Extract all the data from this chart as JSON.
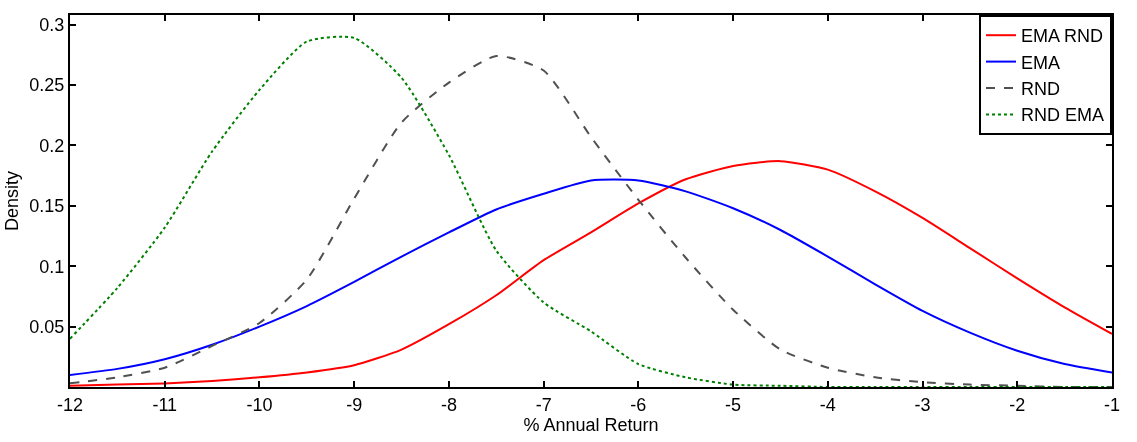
{
  "chart_data": {
    "type": "line",
    "xlabel": "% Annual Return",
    "ylabel": "Density",
    "x": [
      -12,
      -11.5,
      -11,
      -10.5,
      -10,
      -9.5,
      -9,
      -8.5,
      -8,
      -7.5,
      -7,
      -6.5,
      -6,
      -5.5,
      -5,
      -4.5,
      -4,
      -3.5,
      -3,
      -2.5,
      -2,
      -1.5,
      -1
    ],
    "series": [
      {
        "name": "EMA RND",
        "color": "#ff0000",
        "line_style": "solid",
        "values": [
          0.001,
          0.002,
          0.003,
          0.005,
          0.008,
          0.012,
          0.018,
          0.031,
          0.052,
          0.076,
          0.105,
          0.128,
          0.152,
          0.172,
          0.183,
          0.187,
          0.18,
          0.162,
          0.14,
          0.115,
          0.09,
          0.066,
          0.044
        ]
      },
      {
        "name": "EMA",
        "color": "#0000ff",
        "line_style": "solid",
        "values": [
          0.01,
          0.015,
          0.023,
          0.035,
          0.05,
          0.067,
          0.087,
          0.108,
          0.128,
          0.147,
          0.16,
          0.171,
          0.171,
          0.162,
          0.148,
          0.13,
          0.108,
          0.085,
          0.063,
          0.045,
          0.03,
          0.019,
          0.012
        ]
      },
      {
        "name": "RND",
        "color": "#505050",
        "line_style": "dashed",
        "values": [
          0.003,
          0.008,
          0.016,
          0.034,
          0.053,
          0.089,
          0.156,
          0.219,
          0.252,
          0.274,
          0.262,
          0.207,
          0.155,
          0.107,
          0.064,
          0.031,
          0.016,
          0.008,
          0.004,
          0.002,
          0.001,
          0.0,
          0.0
        ]
      },
      {
        "name": "RND EMA",
        "color": "#008000",
        "line_style": "dotted",
        "values": [
          0.04,
          0.082,
          0.132,
          0.195,
          0.246,
          0.286,
          0.289,
          0.256,
          0.192,
          0.113,
          0.07,
          0.046,
          0.019,
          0.008,
          0.002,
          0.001,
          0.0,
          0.0,
          0.0,
          0.0,
          0.0,
          0.0,
          0.0
        ]
      }
    ],
    "xlim": [
      -12,
      -1
    ],
    "xticks": [
      -12,
      -11,
      -10,
      -9,
      -8,
      -7,
      -6,
      -5,
      -4,
      -3,
      -2,
      -1
    ],
    "ylim": [
      0,
      0.308
    ],
    "yticks": [
      0.05,
      0.1,
      0.15,
      0.2,
      0.25,
      0.3
    ],
    "grid": false,
    "legend": "top right",
    "marker": "none"
  }
}
